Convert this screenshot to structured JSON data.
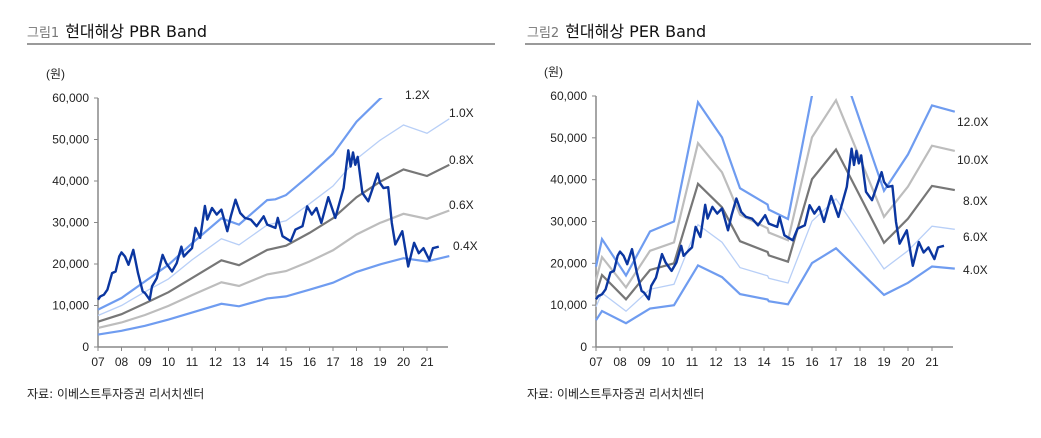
{
  "figures": [
    {
      "number": "그림1",
      "title": "현대해상 PBR Band",
      "source": "자료: 이베스트투자증권 리서치센터"
    },
    {
      "number": "그림2",
      "title": "현대해상 PER Band",
      "source": "자료: 이베스트투자증권 리서치센터"
    }
  ],
  "chart_data": [
    {
      "type": "line",
      "unit_label": "(원)",
      "ylim": [
        0,
        60000
      ],
      "yticks": [
        "0",
        "10,000",
        "20,000",
        "30,000",
        "40,000",
        "50,000",
        "60,000"
      ],
      "xticks": [
        "07",
        "08",
        "09",
        "10",
        "11",
        "12",
        "13",
        "14",
        "15",
        "16",
        "17",
        "18",
        "19",
        "20",
        "21"
      ],
      "xlim": [
        2007,
        2022
      ],
      "price": {
        "x": [
          2007.0,
          2007.1,
          2007.25,
          2007.4,
          2007.6,
          2007.75,
          2007.9,
          2008.0,
          2008.15,
          2008.3,
          2008.5,
          2008.7,
          2008.9,
          2009.0,
          2009.2,
          2009.3,
          2009.5,
          2009.75,
          2009.9,
          2010.15,
          2010.35,
          2010.55,
          2010.65,
          2010.85,
          2011.0,
          2011.15,
          2011.35,
          2011.55,
          2011.65,
          2011.85,
          2012.05,
          2012.25,
          2012.5,
          2012.65,
          2012.85,
          2013.05,
          2013.25,
          2013.5,
          2013.75,
          2014.05,
          2014.2,
          2014.55,
          2014.65,
          2014.85,
          2015.2,
          2015.4,
          2015.7,
          2015.9,
          2016.1,
          2016.3,
          2016.5,
          2016.8,
          2017.1,
          2017.45,
          2017.65,
          2017.75,
          2017.85,
          2017.95,
          2018.05,
          2018.25,
          2018.5,
          2018.9,
          2019.0,
          2019.15,
          2019.35,
          2019.5,
          2019.65,
          2019.95,
          2020.2,
          2020.45,
          2020.65,
          2020.85,
          2021.1,
          2021.25,
          2021.5
        ],
        "y": [
          11400,
          12200,
          12600,
          13800,
          17800,
          18200,
          21800,
          22800,
          21800,
          19800,
          23400,
          17800,
          13400,
          13000,
          11400,
          14600,
          16600,
          22200,
          20200,
          18200,
          20200,
          24200,
          21800,
          23000,
          23800,
          28700,
          26300,
          34000,
          30700,
          33500,
          31900,
          33100,
          27900,
          31500,
          35500,
          32300,
          31100,
          30700,
          29100,
          31500,
          29500,
          28700,
          31100,
          26700,
          25500,
          28300,
          29100,
          33900,
          31900,
          33500,
          29900,
          36100,
          31100,
          38300,
          47400,
          43500,
          46900,
          43900,
          45800,
          37100,
          35100,
          41800,
          39500,
          38300,
          38500,
          29900,
          24700,
          27900,
          19400,
          25100,
          22600,
          23800,
          21000,
          23800,
          24200
        ]
      },
      "bands": [
        {
          "name": "1.2X",
          "color": "#6f9cf0",
          "x": [
            2007,
            2008,
            2009,
            2010,
            2011,
            2012.25,
            2013,
            2014.2,
            2014.55,
            2015,
            2016,
            2017,
            2018,
            2019,
            2020,
            2021,
            2021.95
          ],
          "y": [
            9000,
            11800,
            15800,
            19800,
            25000,
            31000,
            29500,
            35400,
            35600,
            36600,
            41400,
            46500,
            54300,
            59800,
            64200,
            61800,
            66000
          ]
        },
        {
          "name": "1.0X",
          "color": "#b8cff7",
          "x": [
            2007,
            2008,
            2009,
            2010,
            2011,
            2012.25,
            2013,
            2014.2,
            2015,
            2016,
            2017,
            2018,
            2019,
            2020,
            2021,
            2021.95
          ],
          "y": [
            7600,
            10000,
            13300,
            16400,
            21000,
            26100,
            24600,
            29400,
            30400,
            34500,
            38800,
            45300,
            49800,
            53500,
            51500,
            55000
          ]
        },
        {
          "name": "0.8X",
          "color": "#777777",
          "x": [
            2007,
            2008,
            2009,
            2010,
            2011,
            2012.25,
            2013,
            2014.2,
            2015,
            2016,
            2017,
            2018,
            2019,
            2020,
            2021,
            2021.95
          ],
          "y": [
            6100,
            7900,
            10500,
            13200,
            16600,
            20900,
            19700,
            23400,
            24400,
            27500,
            31000,
            36100,
            39800,
            42800,
            41200,
            43900
          ]
        },
        {
          "name": "0.6X",
          "color": "#bdbdbd",
          "x": [
            2007,
            2008,
            2009,
            2010,
            2011,
            2012.25,
            2013,
            2014.2,
            2015,
            2016,
            2017,
            2018,
            2019,
            2020,
            2021,
            2021.95
          ],
          "y": [
            4600,
            5900,
            7700,
            9900,
            12500,
            15600,
            14700,
            17500,
            18300,
            20600,
            23300,
            27100,
            29900,
            32100,
            30900,
            32900
          ]
        },
        {
          "name": "0.4X",
          "color": "#6f9cf0",
          "x": [
            2007,
            2008,
            2009,
            2010,
            2011,
            2012.25,
            2013,
            2014.2,
            2015,
            2016,
            2017,
            2018,
            2019,
            2020,
            2021,
            2021.95
          ],
          "y": [
            3000,
            3900,
            5100,
            6600,
            8300,
            10400,
            9800,
            11700,
            12200,
            13800,
            15500,
            18100,
            19900,
            21400,
            20600,
            21900
          ]
        }
      ]
    },
    {
      "type": "line",
      "unit_label": "(원)",
      "ylim": [
        0,
        60000
      ],
      "yticks": [
        "0",
        "10,000",
        "20,000",
        "30,000",
        "40,000",
        "50,000",
        "60,000"
      ],
      "xticks": [
        "07",
        "08",
        "09",
        "10",
        "11",
        "12",
        "13",
        "14",
        "15",
        "16",
        "17",
        "18",
        "19",
        "20",
        "21"
      ],
      "xlim": [
        2007,
        2022
      ],
      "price": "same as 그림1",
      "bands": [
        {
          "name": "12.0X",
          "color": "#6f9cf0",
          "x": [
            2007,
            2007.25,
            2008.25,
            2009.25,
            2010.25,
            2011.25,
            2012.25,
            2013,
            2014.15,
            2014.2,
            2015,
            2016,
            2017,
            2019,
            2020,
            2021,
            2021.95
          ],
          "y": [
            19200,
            25800,
            17100,
            27600,
            30000,
            58500,
            50100,
            37950,
            34050,
            32850,
            30600,
            60150,
            70800,
            37350,
            46050,
            57750,
            56250
          ]
        },
        {
          "name": "10.0X",
          "color": "#bdbdbd",
          "x": [
            2007,
            2007.25,
            2008.25,
            2009.25,
            2010.25,
            2011.25,
            2012.25,
            2013,
            2014.15,
            2014.2,
            2015,
            2016,
            2017,
            2019,
            2020,
            2021,
            2021.95
          ],
          "y": [
            16000,
            21500,
            14250,
            23000,
            25000,
            48750,
            41750,
            31625,
            28375,
            27375,
            25500,
            50125,
            59000,
            31125,
            38375,
            48125,
            46875
          ]
        },
        {
          "name": "8.0X",
          "color": "#777777",
          "x": [
            2007,
            2007.25,
            2008.25,
            2009.25,
            2010.25,
            2011.25,
            2012.25,
            2013,
            2014.15,
            2014.2,
            2015,
            2016,
            2017,
            2019,
            2020,
            2021,
            2021.95
          ],
          "y": [
            12800,
            17200,
            11400,
            18400,
            20000,
            39000,
            33400,
            25300,
            22700,
            21900,
            20400,
            40100,
            47200,
            24900,
            30700,
            38500,
            37500
          ]
        },
        {
          "name": "6.0X",
          "color": "#b8cff7",
          "x": [
            2007,
            2007.25,
            2008.25,
            2009.25,
            2010.25,
            2011.25,
            2012.25,
            2013,
            2014.15,
            2014.2,
            2015,
            2016,
            2017,
            2019,
            2020,
            2021,
            2021.95
          ],
          "y": [
            9600,
            12900,
            8550,
            13800,
            15000,
            29250,
            25050,
            18975,
            17025,
            16425,
            15300,
            30075,
            35400,
            18675,
            23025,
            28875,
            28125
          ]
        },
        {
          "name": "4.0X",
          "color": "#6f9cf0",
          "x": [
            2007,
            2007.25,
            2008.25,
            2009.25,
            2010.25,
            2011.25,
            2012.25,
            2013,
            2014.15,
            2014.2,
            2015,
            2016,
            2017,
            2019,
            2020,
            2021,
            2021.95
          ],
          "y": [
            6400,
            8600,
            5700,
            9200,
            10000,
            19500,
            16700,
            12650,
            11350,
            10950,
            10200,
            20050,
            23600,
            12450,
            15350,
            19250,
            18750
          ]
        }
      ]
    }
  ],
  "price_color": "#0b36a0"
}
